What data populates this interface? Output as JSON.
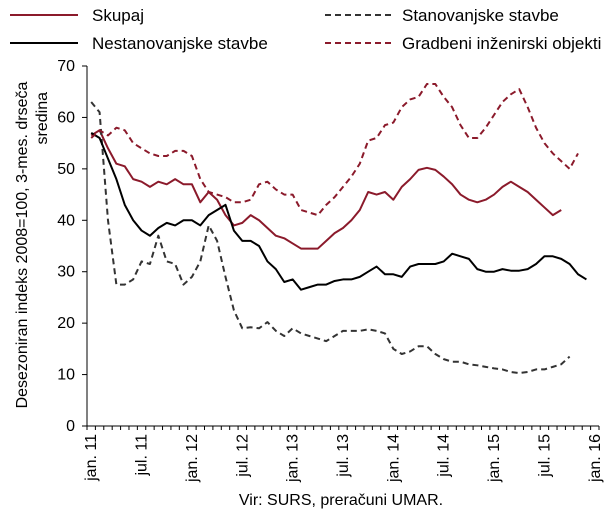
{
  "chart_data": {
    "type": "line",
    "title": "",
    "ylabel_lines": [
      "Desezoniran indeks 2008=100, 3-mes. drseča",
      "sredina"
    ],
    "xlabel": "",
    "source": "Vir: SURS, preračuni UMAR.",
    "ylim": [
      0,
      70
    ],
    "yticks": [
      0,
      10,
      20,
      30,
      40,
      50,
      60,
      70
    ],
    "x_start": "2011-01",
    "x_end": "2016-01",
    "x_ticks": [
      {
        "month_index": 0,
        "label": "jan. 11"
      },
      {
        "month_index": 6,
        "label": "jul. 11"
      },
      {
        "month_index": 12,
        "label": "jan. 12"
      },
      {
        "month_index": 18,
        "label": "jul. 12"
      },
      {
        "month_index": 24,
        "label": "jan. 13"
      },
      {
        "month_index": 30,
        "label": "jul. 13"
      },
      {
        "month_index": 36,
        "label": "jan. 14"
      },
      {
        "month_index": 42,
        "label": "jul. 14"
      },
      {
        "month_index": 48,
        "label": "jan. 15"
      },
      {
        "month_index": 54,
        "label": "jul. 15"
      },
      {
        "month_index": 60,
        "label": "jan. 16"
      }
    ],
    "grid": false,
    "legend_position": "top",
    "series": [
      {
        "name": "Skupaj",
        "color": "#8B1A2B",
        "dash": "solid",
        "legend_slot": 0,
        "values": [
          56.5,
          57.5,
          54,
          51,
          50.5,
          48,
          47.5,
          46.5,
          47.5,
          47,
          48,
          47,
          47,
          43.5,
          45.5,
          44,
          41,
          39,
          39.5,
          41,
          40,
          38.5,
          37,
          36.5,
          35.5,
          34.5,
          34.5,
          34.5,
          36,
          37.5,
          38.5,
          40,
          42,
          45.5,
          45,
          45.5,
          44,
          46.5,
          48,
          49.8,
          50.2,
          49.8,
          48.5,
          47,
          45,
          44,
          43.5,
          44,
          45,
          46.5,
          47.5,
          46.5,
          45.5,
          44,
          42.5,
          41,
          42
        ]
      },
      {
        "name": "Stanovanjske stavbe",
        "color": "#333333",
        "dash": "dashed",
        "legend_slot": 1,
        "values": [
          63,
          61,
          40,
          27.5,
          27.5,
          28.5,
          32,
          31.5,
          37,
          32,
          31.5,
          27.5,
          29,
          32,
          39,
          36,
          29,
          22.5,
          19,
          19.2,
          19,
          20.2,
          18.5,
          17.5,
          19,
          18,
          17.5,
          17,
          16.5,
          17.5,
          18.5,
          18.5,
          18.5,
          18.8,
          18.5,
          18,
          15,
          14,
          14.5,
          15.5,
          15.5,
          14,
          13,
          12.5,
          12.5,
          12,
          11.8,
          11.5,
          11.2,
          11,
          10.5,
          10.3,
          10.5,
          11,
          11,
          11.5,
          12,
          13.5
        ]
      },
      {
        "name": "Nestanovanjske stavbe",
        "color": "#000000",
        "dash": "solid",
        "legend_slot": 2,
        "values": [
          57,
          56,
          52,
          48,
          43,
          40,
          38,
          37,
          38.5,
          39.5,
          39,
          40,
          40,
          39,
          41,
          42,
          43,
          38,
          36,
          36,
          35,
          32,
          30.5,
          28,
          28.5,
          26.5,
          27,
          27.5,
          27.5,
          28.2,
          28.5,
          28.5,
          29,
          30,
          31,
          29.5,
          29.5,
          29,
          31,
          31.5,
          31.5,
          31.5,
          32,
          33.5,
          33,
          32.5,
          30.5,
          30,
          30,
          30.5,
          30.2,
          30.2,
          30.5,
          31.5,
          33,
          33,
          32.5,
          31.5,
          29.5,
          28.5
        ]
      },
      {
        "name": "Gradbeni inženirski objekti",
        "color": "#8B1A2B",
        "dash": "dashed",
        "legend_slot": 3,
        "values": [
          56,
          57.5,
          56.5,
          58,
          57.5,
          55,
          54,
          53,
          52.5,
          52.5,
          53.5,
          53.5,
          52.5,
          48,
          45.5,
          45,
          44.5,
          43.5,
          43.5,
          44,
          47,
          47.5,
          46,
          45,
          45,
          42,
          41.5,
          41,
          43,
          44.5,
          46.5,
          48.5,
          51,
          55.5,
          56,
          58.5,
          59,
          62,
          63.5,
          64,
          66.5,
          66.5,
          64,
          62,
          58.5,
          56,
          56,
          58,
          60.5,
          63,
          64.5,
          65.5,
          62,
          58,
          55,
          53,
          51.5,
          50,
          53
        ]
      }
    ]
  }
}
